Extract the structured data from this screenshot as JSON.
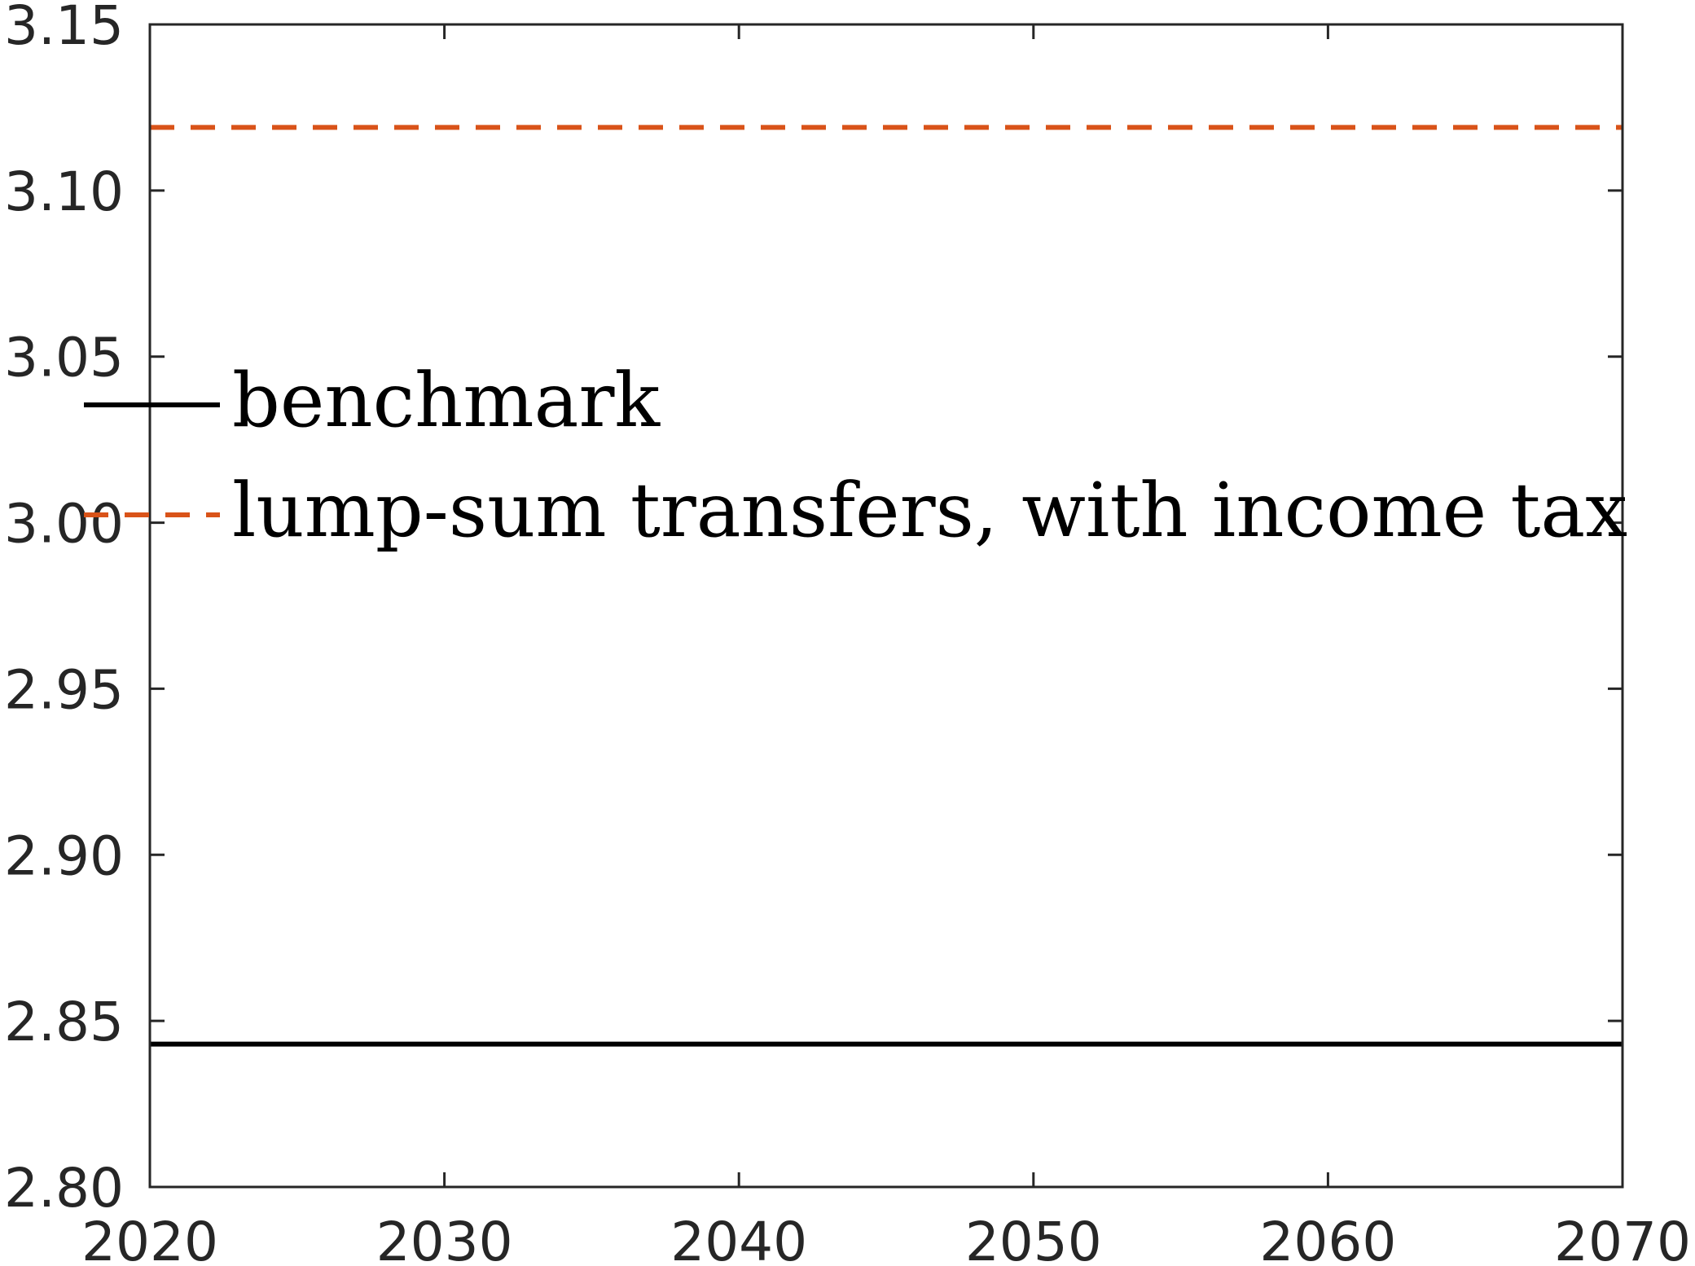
{
  "chart_data": {
    "type": "line",
    "title": "",
    "xlabel": "",
    "ylabel": "",
    "xlim": [
      2020,
      2070
    ],
    "ylim": [
      2.8,
      3.15
    ],
    "x_ticks": [
      "2020",
      "2030",
      "2040",
      "2050",
      "2060",
      "2070"
    ],
    "y_ticks": [
      "2.80",
      "2.85",
      "2.90",
      "2.95",
      "3.00",
      "3.05",
      "3.10",
      "3.15"
    ],
    "grid": false,
    "legend_position": "middle-left",
    "series": [
      {
        "name": "benchmark",
        "style": "solid",
        "color": "#000000",
        "x": [
          2020,
          2070
        ],
        "y": [
          2.843,
          2.843
        ]
      },
      {
        "name": "lump-sum transfers, with income tax",
        "style": "dashed",
        "color": "#D95319",
        "x": [
          2020,
          2070
        ],
        "y": [
          3.119,
          3.119
        ]
      }
    ]
  }
}
